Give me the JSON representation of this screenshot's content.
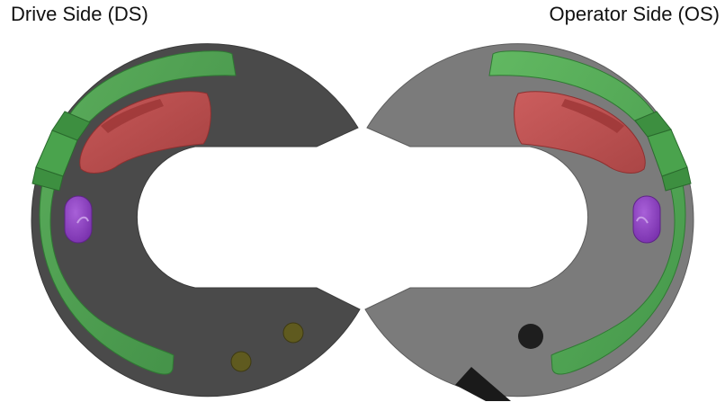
{
  "labels": {
    "drive_side": "Drive Side (DS)",
    "operator_side": "Operator Side (OS)"
  },
  "colors": {
    "ds_plate": "#4a4a4a",
    "os_plate": "#7b7b7b",
    "green_track": "#4fae4f",
    "red_slot": "#c24a4a",
    "purple_pin": "#8b3fc0",
    "olive_hole": "#5f5a1f",
    "dark_hole": "#1e1e1e"
  }
}
